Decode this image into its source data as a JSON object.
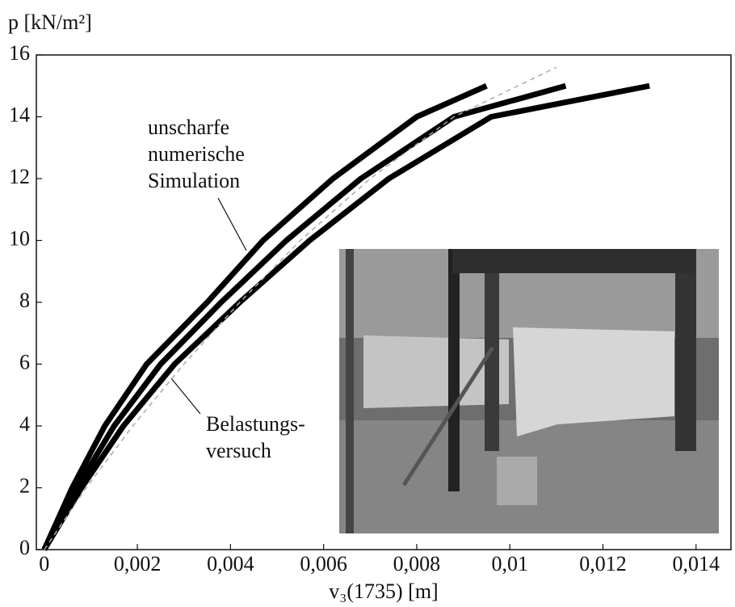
{
  "chart_data": {
    "type": "line",
    "y_label": "p [kN/m²]",
    "x_label": "v₃(1735) [m]",
    "xlim": [
      -0.00017,
      0.01475
    ],
    "ylim": [
      0,
      16
    ],
    "xticks": [
      0,
      {
        "value": 0.002,
        "label": "0,002"
      },
      {
        "value": 0.004,
        "label": "0,004"
      },
      {
        "value": 0.006,
        "label": "0,006"
      },
      {
        "value": 0.008,
        "label": "0,008"
      },
      {
        "value": 0.01,
        "label": "0,01"
      },
      {
        "value": 0.012,
        "label": "0,012"
      },
      {
        "value": 0.014,
        "label": "0,014"
      }
    ],
    "yticks": [
      0,
      2,
      4,
      6,
      8,
      10,
      12,
      14,
      16
    ],
    "series": [
      {
        "color": "#000000",
        "style": "solid",
        "x": [
          0,
          0.0006,
          0.0013,
          0.0022,
          0.0035,
          0.0047,
          0.0062,
          0.008,
          0.0095
        ],
        "values": [
          0,
          2,
          4,
          6,
          8,
          10,
          12,
          14,
          15
        ]
      },
      {
        "color": "#000000",
        "style": "solid",
        "x": [
          0,
          0.0007,
          0.0015,
          0.0025,
          0.0038,
          0.0052,
          0.0068,
          0.0088,
          0.0112
        ],
        "values": [
          0,
          2,
          4,
          6,
          8,
          10,
          12,
          14,
          15
        ]
      },
      {
        "color": "#000000",
        "style": "solid",
        "x": [
          0,
          0.0008,
          0.0017,
          0.0028,
          0.0042,
          0.0057,
          0.0074,
          0.0096,
          0.013
        ],
        "values": [
          0,
          2,
          4,
          6,
          8,
          10,
          12,
          14,
          15
        ]
      },
      {
        "color": "#aaaaaa",
        "style": "dashed",
        "x": [
          0,
          0.0009,
          0.0019,
          0.003,
          0.0042,
          0.0055,
          0.007,
          0.0088,
          0.011
        ],
        "values": [
          0,
          2,
          4,
          6,
          8,
          10,
          12,
          14,
          15.6
        ]
      }
    ],
    "annotations": [
      {
        "lines": [
          "unscharfe",
          "numerische",
          "Simulation"
        ]
      },
      {
        "lines": [
          "Belastungs-",
          "versuch"
        ]
      }
    ]
  }
}
